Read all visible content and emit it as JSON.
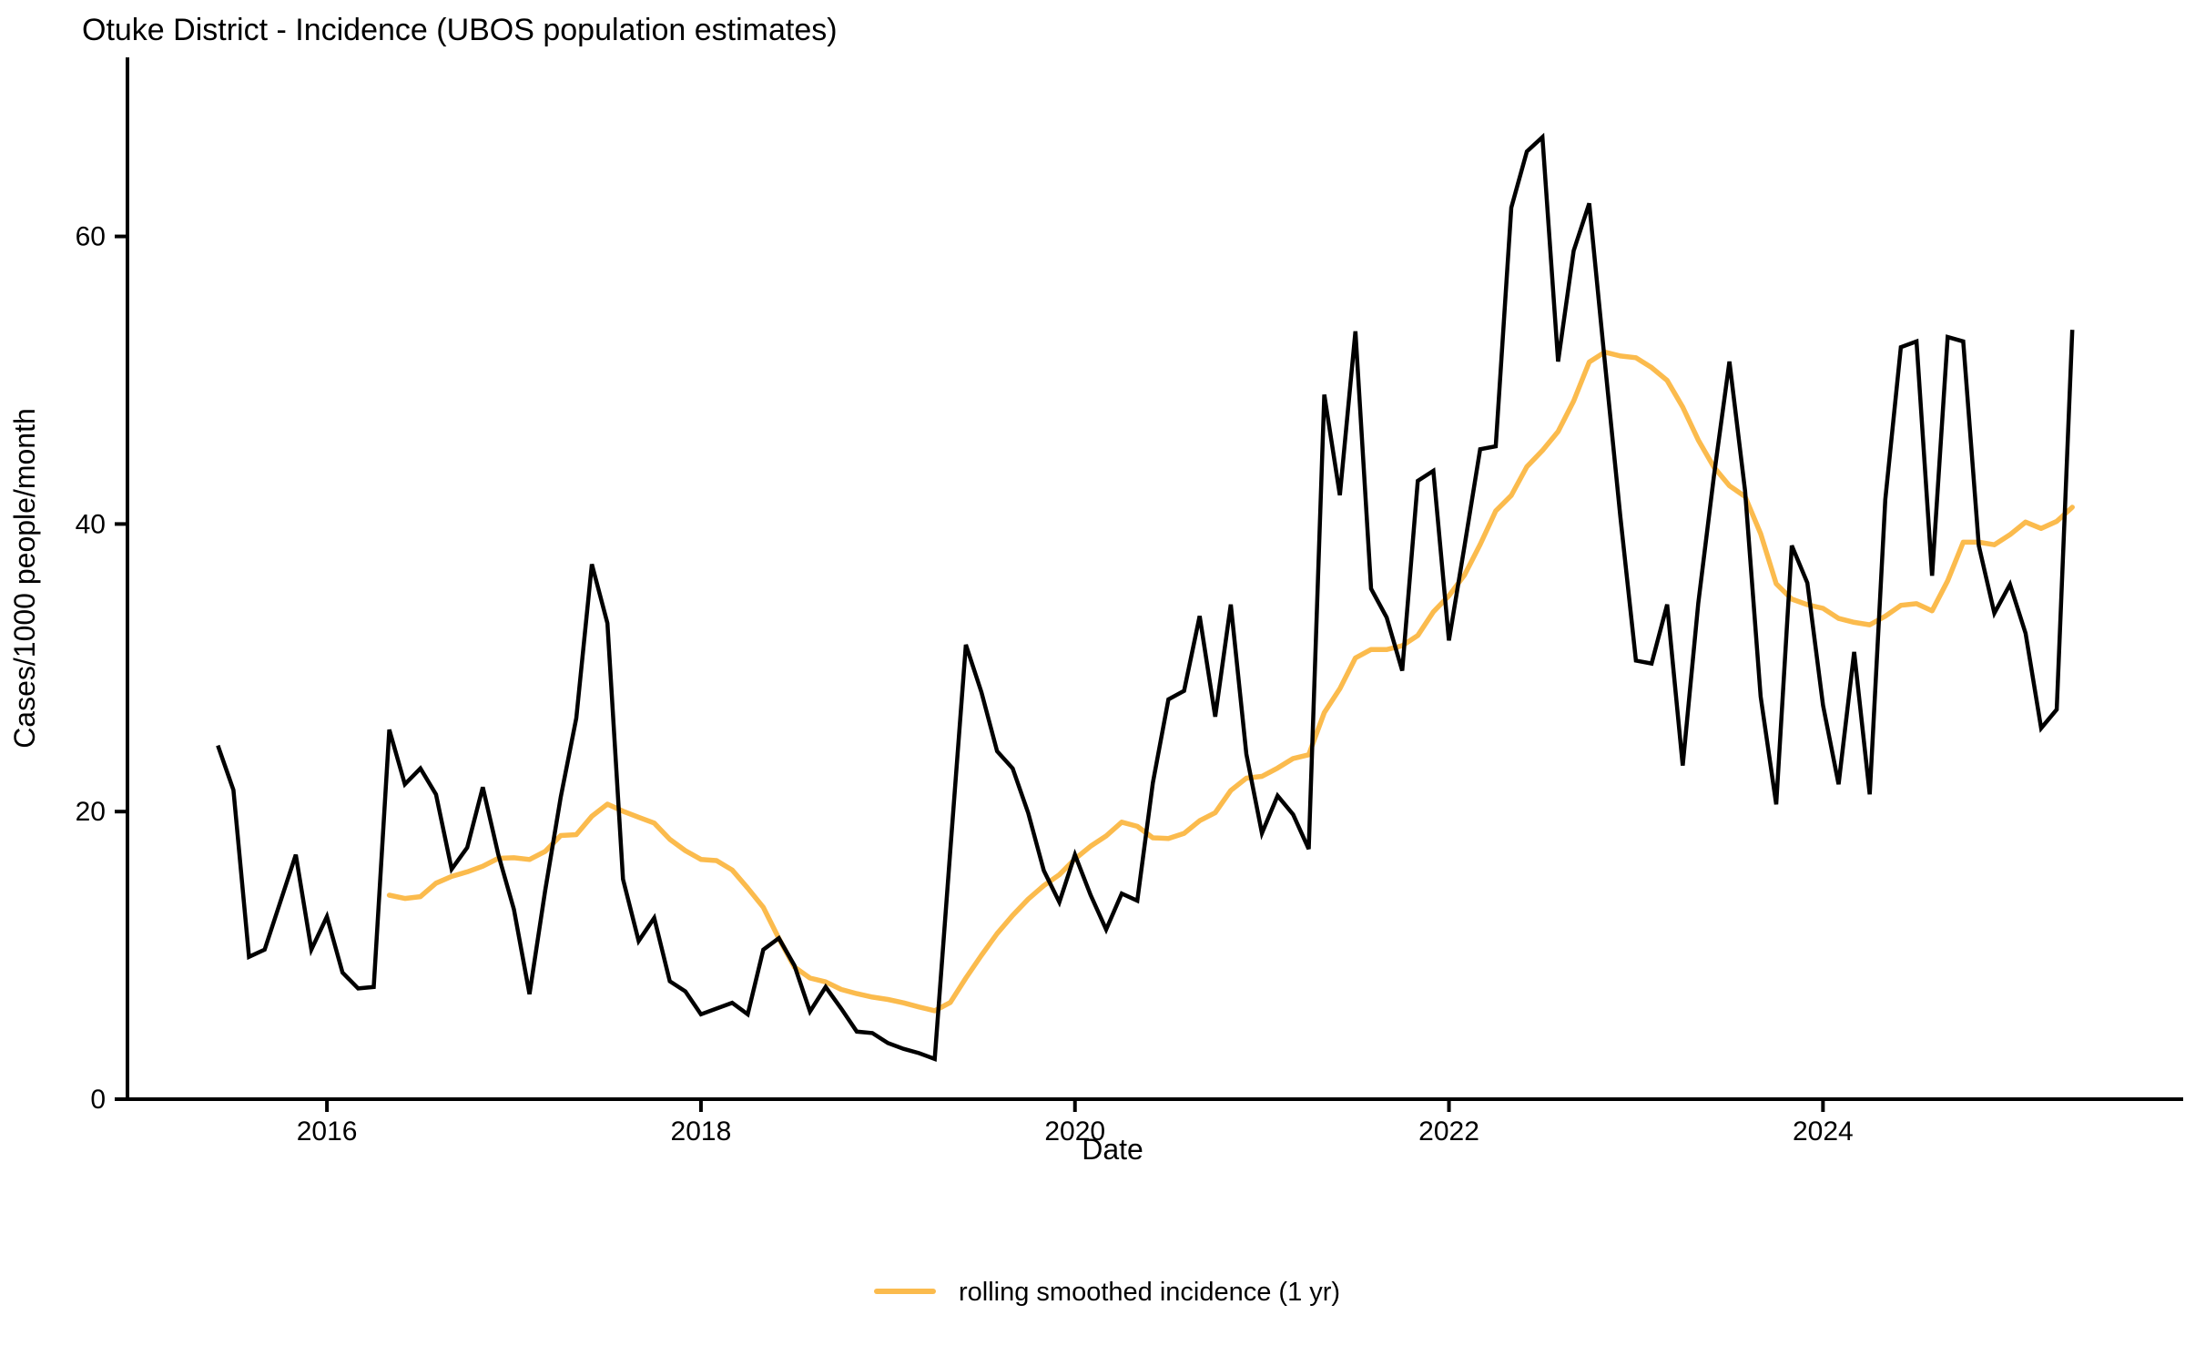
{
  "title": "Otuke District - Incidence (UBOS population estimates)",
  "axes": {
    "x_label": "Date",
    "y_label": "Cases/1000 people/month",
    "x_tick_labels": [
      "2016",
      "2018",
      "2020",
      "2022",
      "2024"
    ],
    "y_tick_labels": [
      "0",
      "20",
      "40",
      "60"
    ],
    "y_tick_values": [
      0,
      20,
      40,
      60
    ]
  },
  "legend": {
    "smoothed_label": "rolling smoothed incidence (1 yr)"
  },
  "colors": {
    "raw_line": "#000000",
    "smoothed_line": "#FBBB4D",
    "axis": "#000000",
    "text": "#000000"
  },
  "chart_data": {
    "type": "line",
    "title": "Otuke District - Incidence (UBOS population estimates)",
    "xlabel": "Date",
    "ylabel": "Cases/1000 people/month",
    "x_start_month": "2015-06",
    "x_end_month": "2025-05",
    "x_unit": "month",
    "ylim": [
      0,
      70
    ],
    "x_axis_tick_years": [
      2016,
      2018,
      2020,
      2022,
      2024
    ],
    "grid": false,
    "legend_position": "bottom",
    "series": [
      {
        "name": "monthly incidence (cases/1000 people/month)",
        "color_key": "raw_line",
        "start_month": "2015-06",
        "values": [
          24.6,
          21.5,
          9.9,
          10.4,
          13.7,
          17.0,
          10.4,
          12.7,
          8.8,
          7.7,
          7.8,
          25.7,
          21.9,
          23.0,
          21.2,
          16.0,
          17.5,
          21.7,
          17.0,
          13.2,
          7.3,
          14.5,
          21.0,
          26.5,
          37.2,
          33.1,
          15.3,
          11.0,
          12.6,
          8.2,
          7.5,
          5.9,
          6.3,
          6.7,
          5.9,
          10.4,
          11.2,
          9.3,
          6.1,
          7.8,
          6.3,
          4.7,
          4.6,
          3.9,
          3.5,
          3.2,
          2.8,
          17.3,
          31.6,
          28.3,
          24.2,
          23.0,
          19.9,
          15.9,
          13.7,
          17.0,
          14.2,
          11.8,
          14.3,
          13.8,
          22.0,
          27.8,
          28.4,
          33.6,
          26.6,
          34.4,
          24.0,
          18.5,
          21.1,
          19.8,
          17.4,
          49.0,
          42.0,
          53.4,
          35.5,
          33.5,
          29.8,
          43.0,
          43.7,
          31.9,
          38.5,
          45.2,
          45.4,
          62.0,
          65.9,
          66.9,
          51.3,
          59.0,
          62.3,
          51.3,
          40.5,
          30.5,
          30.3,
          34.4,
          23.2,
          34.5,
          43.3,
          51.3,
          42.3,
          28.0,
          20.5,
          38.5,
          35.9,
          27.4,
          21.9,
          31.1,
          21.2,
          41.7,
          52.3,
          52.7,
          36.4,
          53.0,
          52.7,
          38.5,
          33.8,
          35.8,
          32.4,
          25.8,
          27.1,
          53.5
        ]
      },
      {
        "name": "rolling smoothed incidence (1 yr)",
        "color_key": "smoothed_line",
        "derived": "trailing 12-month mean of the monthly incidence series, first point at 2016-05"
      }
    ]
  }
}
